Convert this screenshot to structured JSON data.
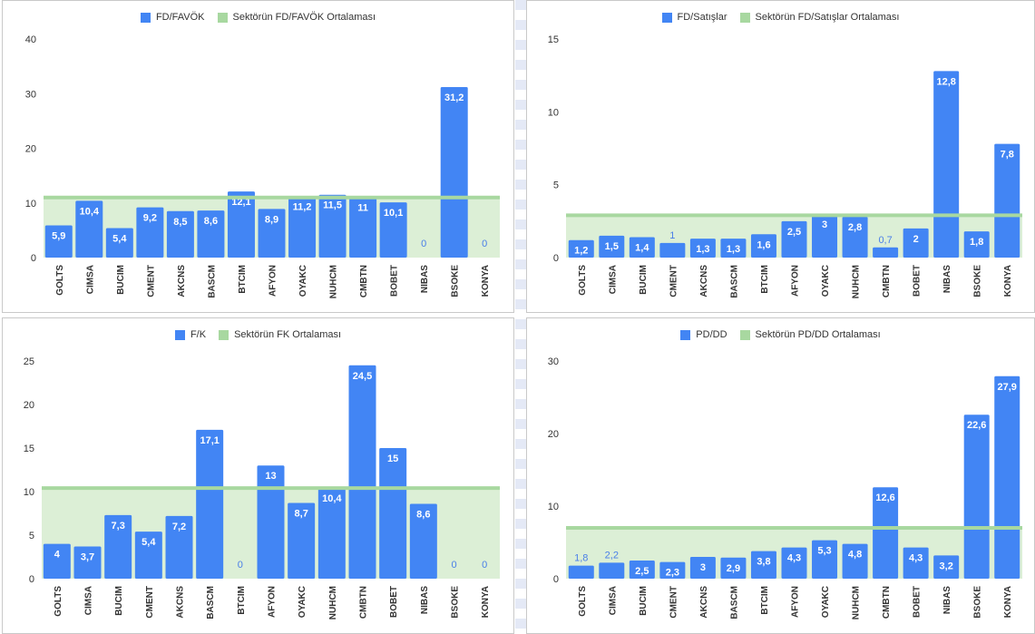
{
  "colors": {
    "bar": "#4285f4",
    "avg_fill": "#dcefd6",
    "avg_line": "#a8d8a0",
    "label_in": "#ffffff",
    "label_out": "#4a7fe8",
    "axis_text": "#333333"
  },
  "chart_data": [
    {
      "type": "bar",
      "legend": {
        "series": "FD/FAVÖK",
        "average": "Sektörün FD/FAVÖK Ortalaması"
      },
      "categories": [
        "GOLTS",
        "CIMSA",
        "BUCIM",
        "CMENT",
        "AKCNS",
        "BASCM",
        "BTCIM",
        "AFYON",
        "OYAKC",
        "NUHCM",
        "CMBTN",
        "BOBET",
        "NIBAS",
        "BSOKE",
        "KONYA"
      ],
      "values": [
        5.9,
        10.4,
        5.4,
        9.2,
        8.5,
        8.6,
        12.1,
        8.9,
        11.2,
        11.5,
        11,
        10.1,
        0,
        31.2,
        0
      ],
      "value_labels": [
        "5,9",
        "10,4",
        "5,4",
        "9,2",
        "8,5",
        "8,6",
        "12,1",
        "8,9",
        "11,2",
        "11,5",
        "11",
        "10,1",
        "0",
        "31,2",
        "0"
      ],
      "average": 11,
      "ylim": [
        0,
        40
      ],
      "yticks": [
        "0",
        "10",
        "20",
        "30",
        "40"
      ],
      "ytick_values": [
        0,
        10,
        20,
        30,
        40
      ]
    },
    {
      "type": "bar",
      "legend": {
        "series": "FD/Satışlar",
        "average": "Sektörün FD/Satışlar Ortalaması"
      },
      "categories": [
        "GOLTS",
        "CIMSA",
        "BUCIM",
        "CMENT",
        "AKCNS",
        "BASCM",
        "BTCIM",
        "AFYON",
        "OYAKC",
        "NUHCM",
        "CMBTN",
        "BOBET",
        "NIBAS",
        "BSOKE",
        "KONYA"
      ],
      "values": [
        1.2,
        1.5,
        1.4,
        1,
        1.3,
        1.3,
        1.6,
        2.5,
        3,
        2.8,
        0.7,
        2,
        12.8,
        1.8,
        7.8
      ],
      "value_labels": [
        "1,2",
        "1,5",
        "1,4",
        "1",
        "1,3",
        "1,3",
        "1,6",
        "2,5",
        "3",
        "2,8",
        "0,7",
        "2",
        "12,8",
        "1,8",
        "7,8"
      ],
      "average": 2.9,
      "ylim": [
        0,
        15
      ],
      "yticks": [
        "0",
        "5",
        "10",
        "15"
      ],
      "ytick_values": [
        0,
        5,
        10,
        15
      ]
    },
    {
      "type": "bar",
      "legend": {
        "series": "F/K",
        "average": "Sektörün FK Ortalaması"
      },
      "categories": [
        "GOLTS",
        "CIMSA",
        "BUCIM",
        "CMENT",
        "AKCNS",
        "BASCM",
        "BTCIM",
        "AFYON",
        "OYAKC",
        "NUHCM",
        "CMBTN",
        "BOBET",
        "NIBAS",
        "BSOKE",
        "KONYA"
      ],
      "values": [
        4,
        3.7,
        7.3,
        5.4,
        7.2,
        17.1,
        0,
        13,
        8.7,
        10.4,
        24.5,
        15,
        8.6,
        0,
        0
      ],
      "value_labels": [
        "4",
        "3,7",
        "7,3",
        "5,4",
        "7,2",
        "17,1",
        "0",
        "13",
        "8,7",
        "10,4",
        "24,5",
        "15",
        "8,6",
        "0",
        "0"
      ],
      "average": 10.4,
      "ylim": [
        0,
        25
      ],
      "yticks": [
        "0",
        "5",
        "10",
        "15",
        "20",
        "25"
      ],
      "ytick_values": [
        0,
        5,
        10,
        15,
        20,
        25
      ]
    },
    {
      "type": "bar",
      "legend": {
        "series": "PD/DD",
        "average": "Sektörün PD/DD Ortalaması"
      },
      "categories": [
        "GOLTS",
        "CIMSA",
        "BUCIM",
        "CMENT",
        "AKCNS",
        "BASCM",
        "BTCIM",
        "AFYON",
        "OYAKC",
        "NUHCM",
        "CMBTN",
        "BOBET",
        "NIBAS",
        "BSOKE",
        "KONYA"
      ],
      "values": [
        1.8,
        2.2,
        2.5,
        2.3,
        3,
        2.9,
        3.8,
        4.3,
        5.3,
        4.8,
        12.6,
        4.3,
        3.2,
        22.6,
        27.9
      ],
      "value_labels": [
        "1,8",
        "2,2",
        "2,5",
        "2,3",
        "3",
        "2,9",
        "3,8",
        "4,3",
        "5,3",
        "4,8",
        "12,6",
        "4,3",
        "3,2",
        "22,6",
        "27,9"
      ],
      "average": 7,
      "ylim": [
        0,
        30
      ],
      "yticks": [
        "0",
        "10",
        "20",
        "30"
      ],
      "ytick_values": [
        0,
        10,
        20,
        30
      ]
    }
  ]
}
